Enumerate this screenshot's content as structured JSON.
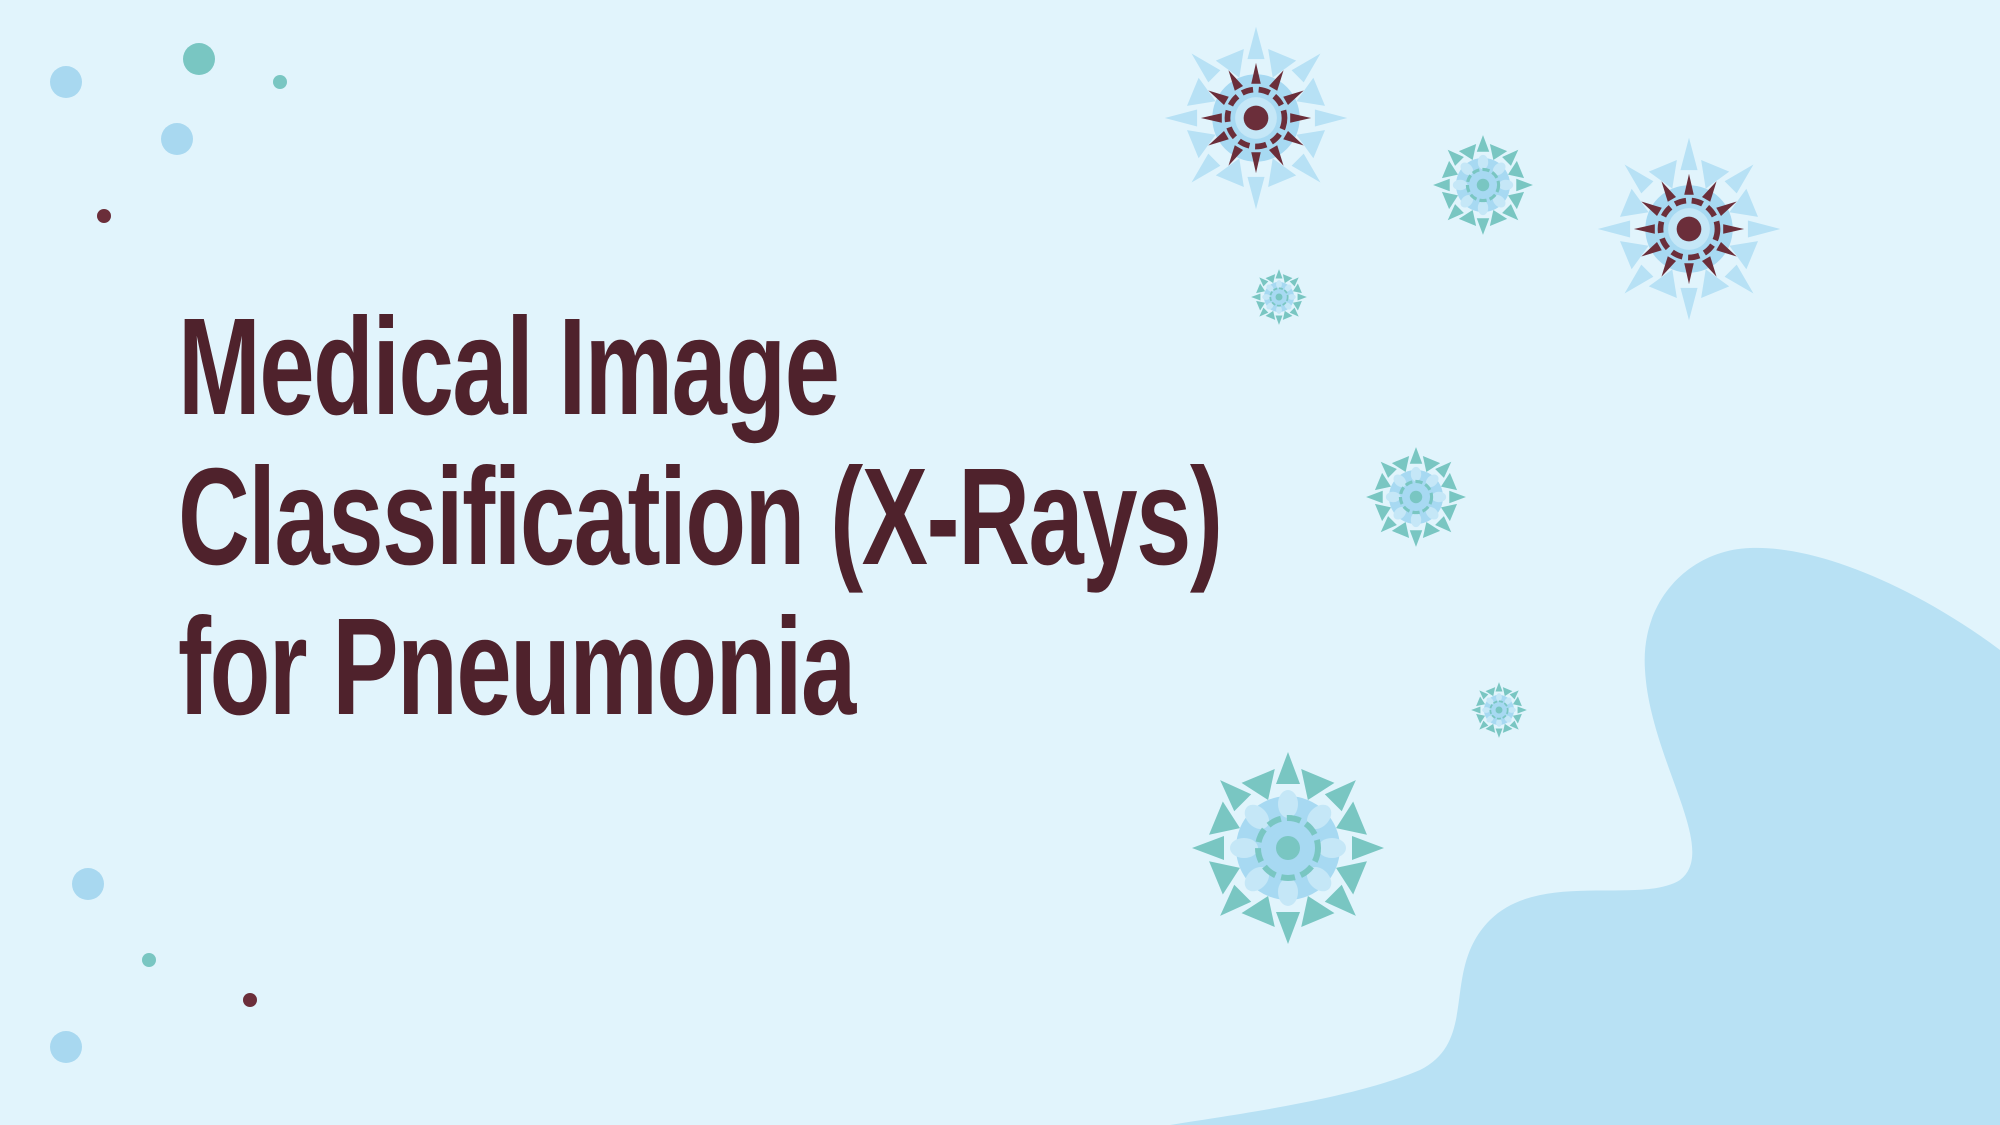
{
  "slide": {
    "title_lines": [
      "Medical Image",
      "Classification (X-Rays)",
      "for Pneumonia"
    ]
  },
  "colors": {
    "background": "#e1f4fc",
    "blob": "#b8e1f4",
    "title": "#4f222c",
    "virus_light_blue": "#a7d9f2",
    "virus_pale_blue": "#c5e7f7",
    "virus_teal": "#79c6c2",
    "virus_maroon": "#6b2e3a",
    "dot_blue": "#a8d8f0",
    "dot_teal": "#79c6c2",
    "dot_maroon": "#6b2e3a"
  },
  "icons": [
    "virus-icon",
    "dot-decoration"
  ]
}
